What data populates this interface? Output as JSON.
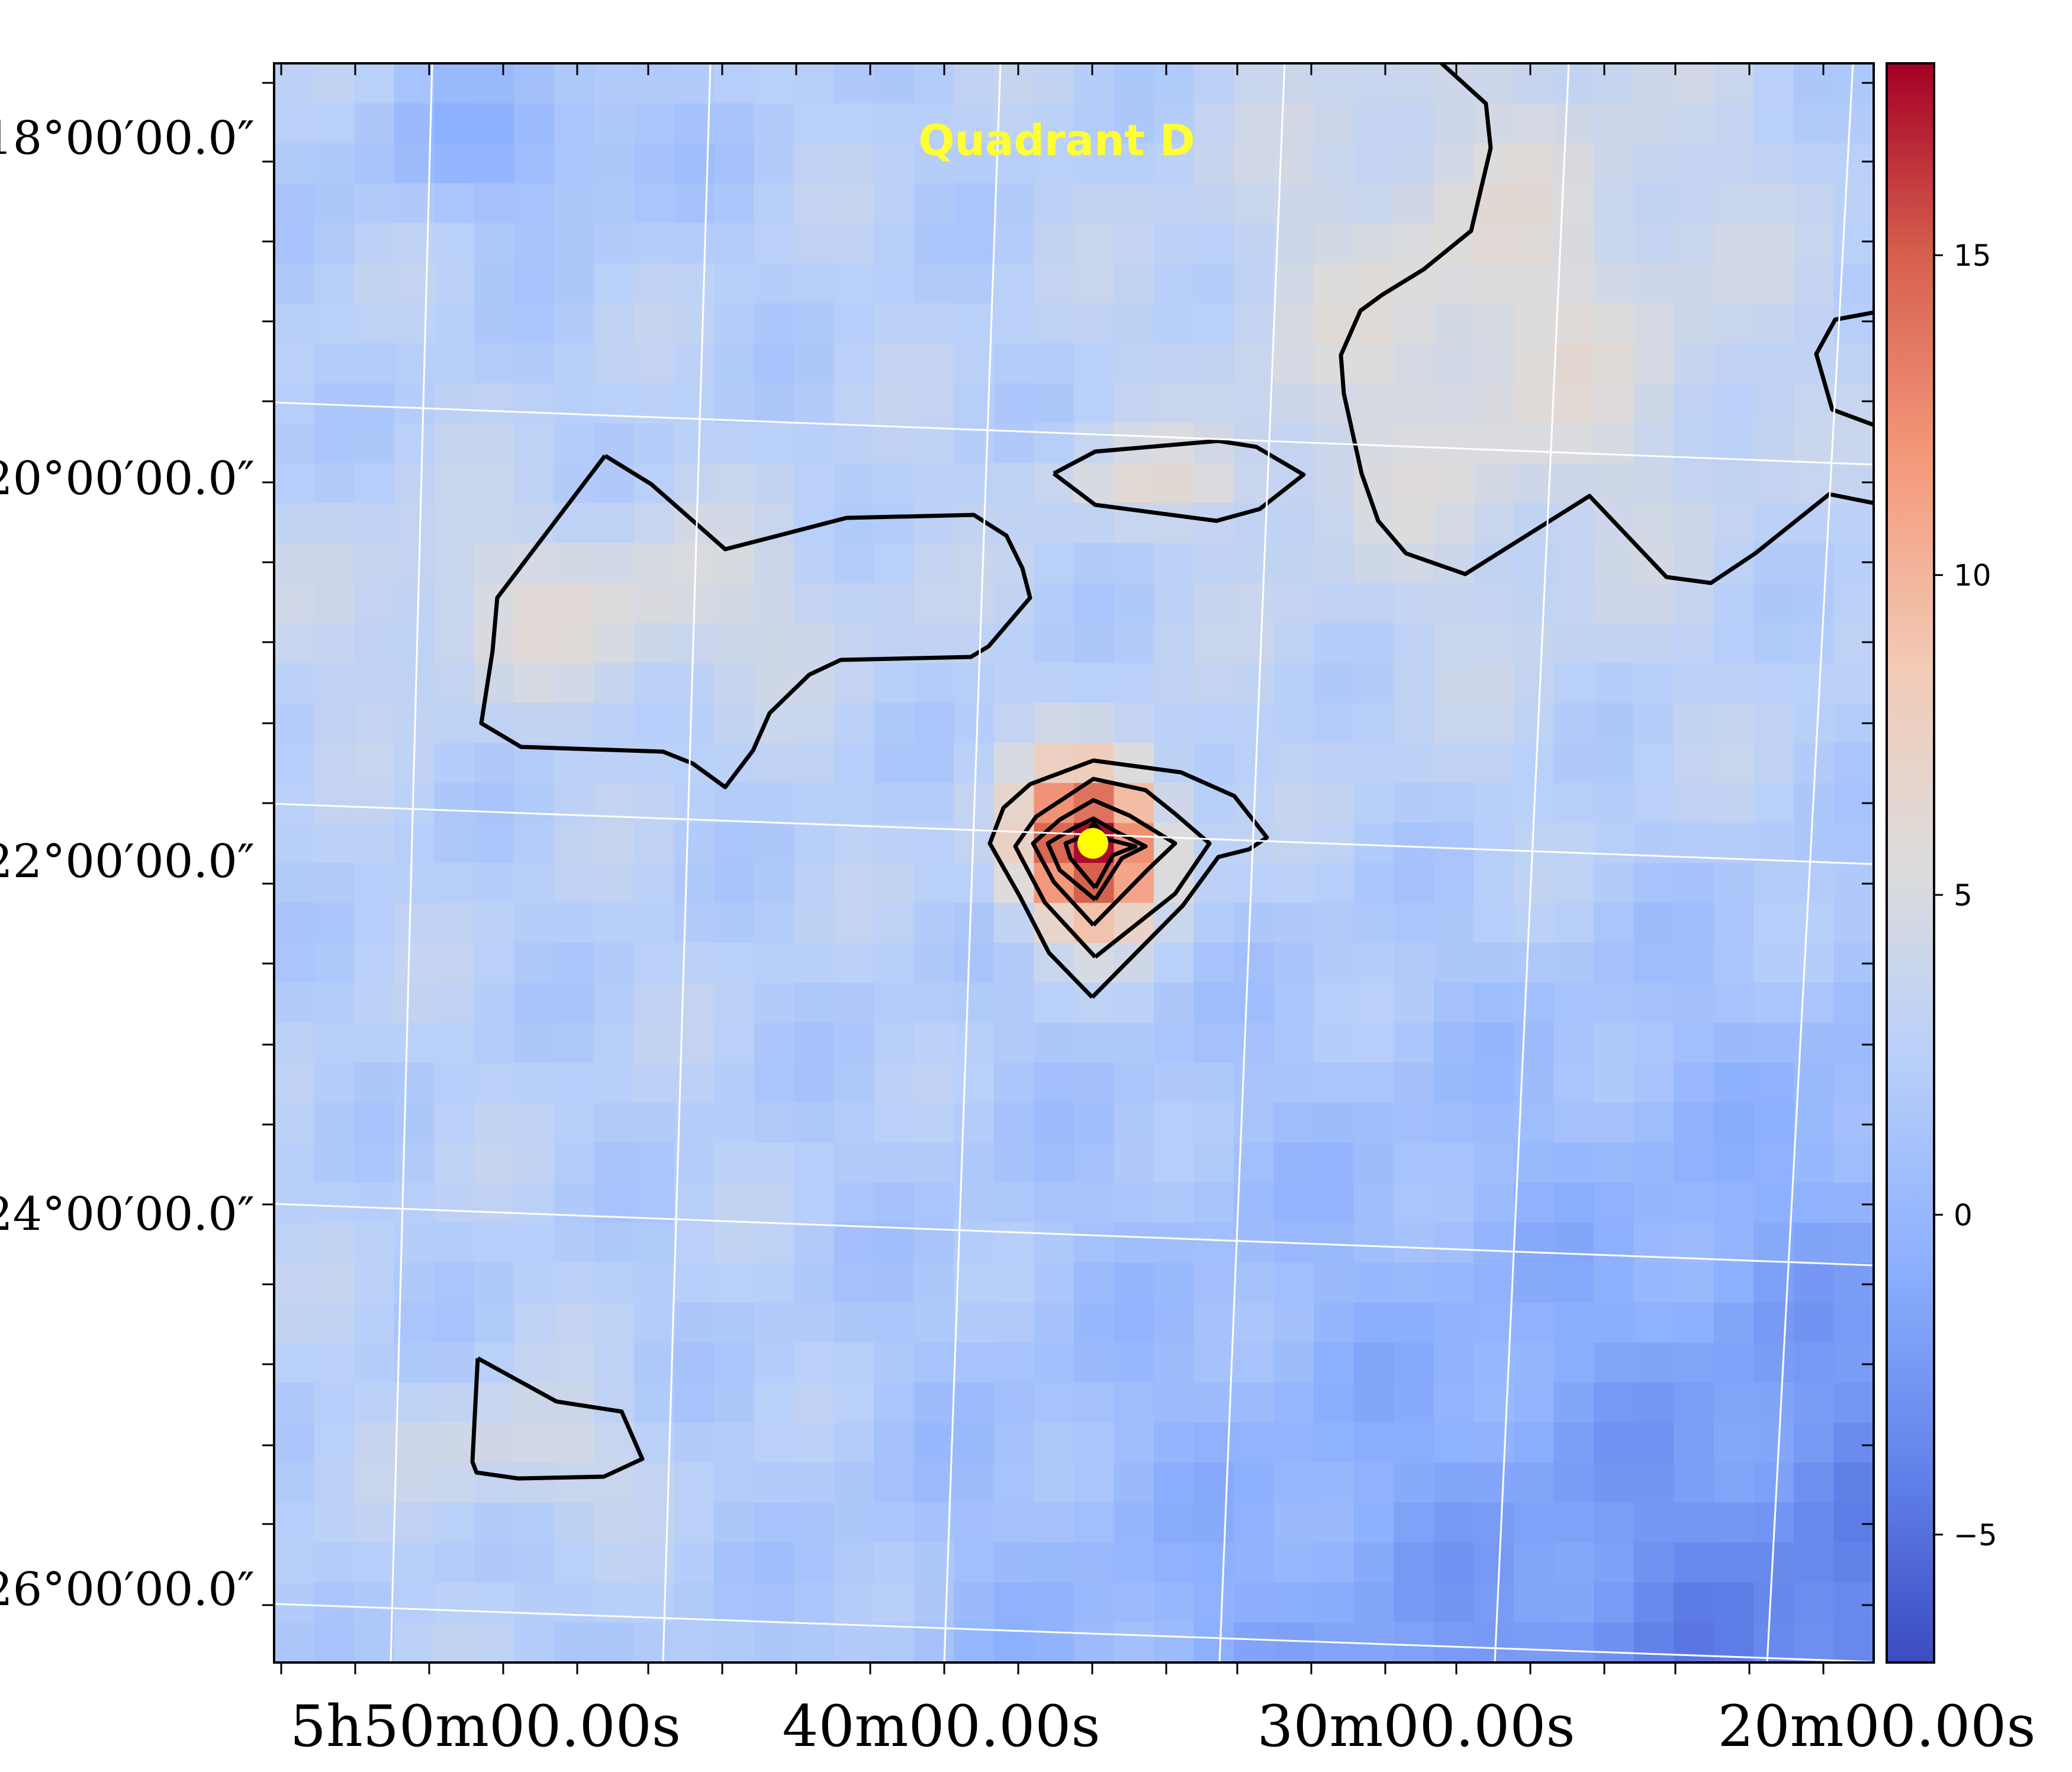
{
  "chart_data": {
    "type": "heatmap",
    "title": "Quadrant D",
    "xlabel": "",
    "ylabel": "",
    "grid": true,
    "x_ticks": [
      "5h50m00.00s",
      "40m00.00s",
      "30m00.00s",
      "20m00.00s"
    ],
    "y_ticks": [
      "18°00′00.0″",
      "20°00′00.0″",
      "22°00′00.0″",
      "24°00′00.0″",
      "26°00′00.0″"
    ],
    "colorbar": {
      "colormap": "coolwarm",
      "range": [
        -7,
        18
      ],
      "ticks": [
        -5,
        0,
        5,
        10,
        15
      ]
    },
    "marker": {
      "label": "source",
      "color": "#ffff00"
    },
    "colors": {
      "title": "#ffff33",
      "contour": "#000000",
      "grid": "#ffffff",
      "marker": "#ffff00"
    }
  }
}
